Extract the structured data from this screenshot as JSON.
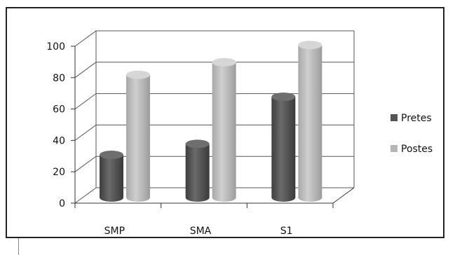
{
  "chart_data": {
    "type": "bar",
    "style": "3d-cylinder",
    "categories": [
      "SMP",
      "SMA",
      "S1"
    ],
    "series": [
      {
        "name": "Pretes",
        "values": [
          29,
          36,
          66
        ],
        "color": "#555555"
      },
      {
        "name": "Postes",
        "values": [
          80,
          88,
          99
        ],
        "color": "#b5b5b5"
      }
    ],
    "yticks": [
      "0",
      "20",
      "40",
      "60",
      "80",
      "100"
    ],
    "ylim": [
      0,
      100
    ],
    "grid": true,
    "legend_position": "right"
  }
}
